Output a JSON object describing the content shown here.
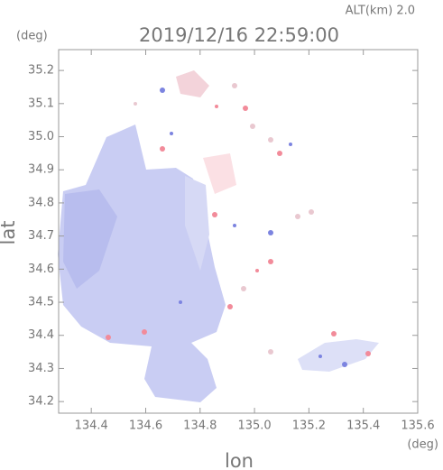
{
  "chart_data": {
    "type": "map",
    "title": "2019/12/16 22:59:00",
    "subtitle": "ALT(km) 2.0",
    "xlabel": "lon",
    "ylabel": "lat",
    "xunit": "(deg)",
    "yunit": "(deg)",
    "xlim": [
      134.28,
      135.6
    ],
    "ylim": [
      34.165,
      35.263
    ],
    "xticks": [
      134.4,
      134.6,
      134.8,
      {
        "value": 135,
        "label": "135.0"
      },
      135.2,
      135.4,
      135.6
    ],
    "yticks": [
      34.2,
      34.3,
      34.4,
      34.5,
      34.6,
      34.7,
      34.8,
      34.9,
      {
        "value": 35,
        "label": "35.0"
      },
      35.1,
      35.2
    ]
  }
}
